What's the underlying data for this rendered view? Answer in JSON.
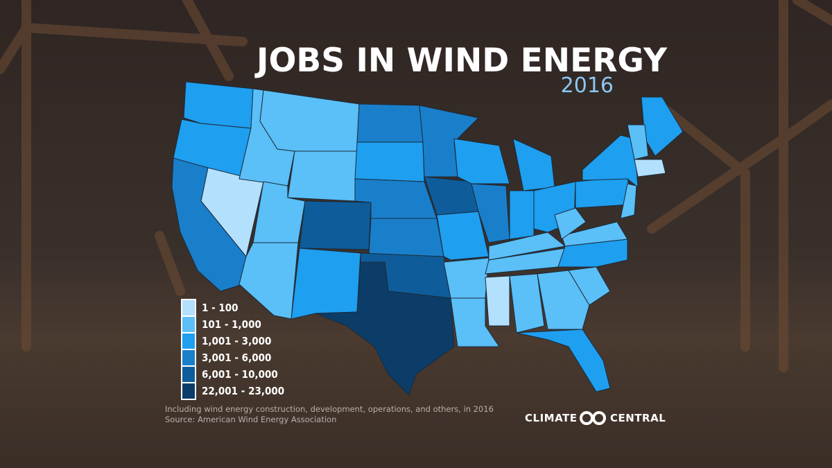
{
  "header": {
    "title": "JOBS IN WIND ENERGY",
    "subtitle": "2016"
  },
  "legend": [
    {
      "label": "1 - 100",
      "color": "#b3e0fd"
    },
    {
      "label": "101 - 1,000",
      "color": "#5bbff8"
    },
    {
      "label": "1,001 - 3,000",
      "color": "#1e9ff0"
    },
    {
      "label": "3,001 - 6,000",
      "color": "#1a7fcb"
    },
    {
      "label": "6,001 - 10,000",
      "color": "#0f5c9a"
    },
    {
      "label": "22,001 - 23,000",
      "color": "#0b3d68"
    }
  ],
  "footer": {
    "notes": [
      "Including wind energy construction, development, operations, and others, in 2016",
      "Source: American Wind Energy Association"
    ],
    "logo": {
      "left": "CLIMATE",
      "right": "CENTRAL"
    }
  }
}
